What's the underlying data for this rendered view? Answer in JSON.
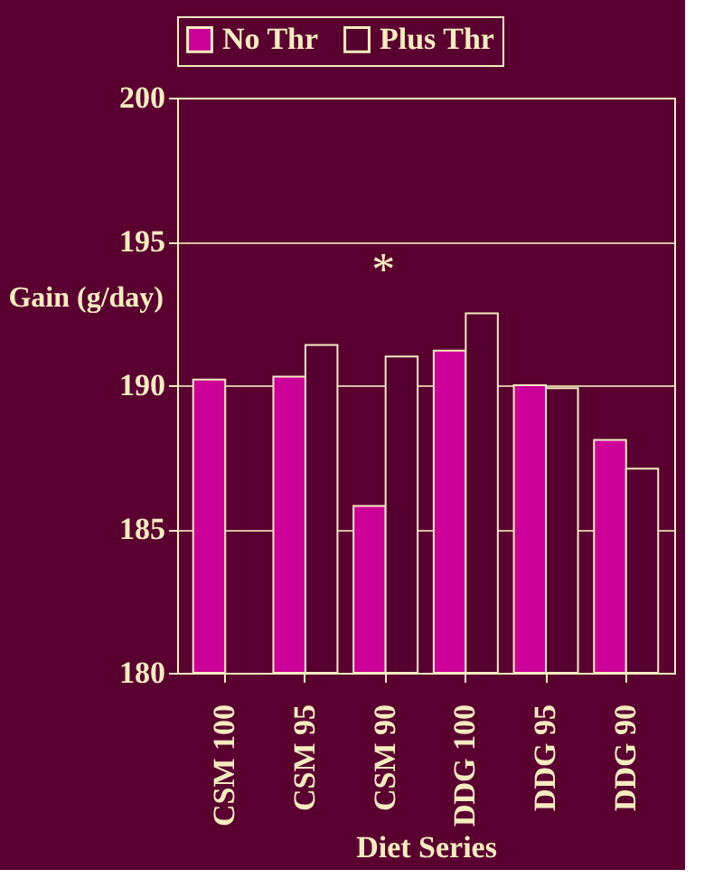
{
  "chart_data": {
    "type": "bar",
    "xlabel": "Diet Series",
    "ylabel": "Gain (g/day)",
    "categories": [
      "CSM 100",
      "CSM 95",
      "CSM 90",
      "DDG 100",
      "DDG 95",
      "DDG 90"
    ],
    "series": [
      {
        "name": "No Thr",
        "color": "#cc0099",
        "values": [
          190.2,
          190.3,
          185.8,
          191.2,
          190.0,
          188.1
        ]
      },
      {
        "name": "Plus Thr",
        "color": "#55002e",
        "values": [
          null,
          191.4,
          191.0,
          192.5,
          189.9,
          187.1
        ]
      }
    ],
    "ylim": [
      180,
      200
    ],
    "yticks": [
      180,
      185,
      190,
      195,
      200
    ],
    "grid": "y",
    "legend": "top",
    "annotations": [
      "*"
    ]
  }
}
